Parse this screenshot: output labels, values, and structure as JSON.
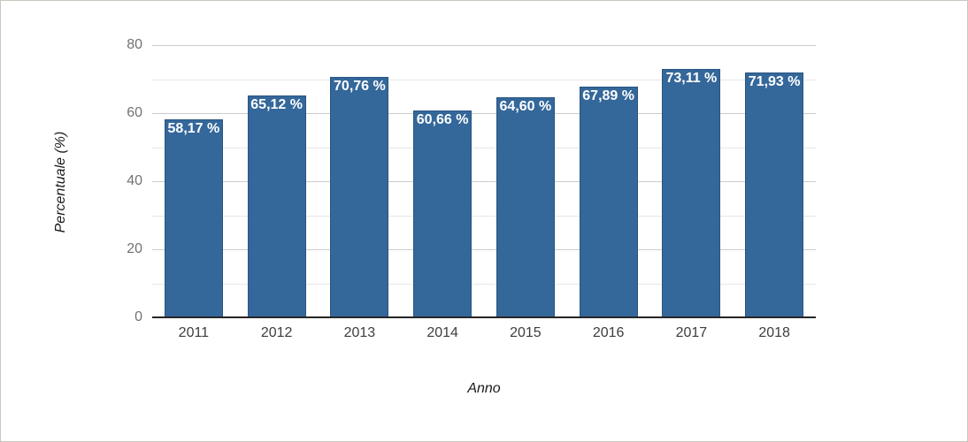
{
  "window": {
    "background": "#ffffff",
    "border_color": "#c7c7bf"
  },
  "chart_data": {
    "type": "bar",
    "title": "",
    "xlabel": "Anno",
    "ylabel": "Percentuale (%)",
    "categories": [
      "2011",
      "2012",
      "2013",
      "2014",
      "2015",
      "2016",
      "2017",
      "2018"
    ],
    "values": [
      58.17,
      65.12,
      70.76,
      60.66,
      64.6,
      67.89,
      73.11,
      71.93
    ],
    "value_labels": [
      "58,17 %",
      "65,12 %",
      "70,76 %",
      "60,66 %",
      "64,60 %",
      "67,89 %",
      "73,11 %",
      "71,93 %"
    ],
    "ylim": [
      0,
      80
    ],
    "yticks_major": [
      0,
      20,
      40,
      60,
      80
    ],
    "ytick_labels": [
      "0",
      "20",
      "40",
      "60",
      "80"
    ],
    "yticks_minor": [
      10,
      30,
      50,
      70
    ],
    "grid": "horizontal",
    "legend_position": "none",
    "colors": {
      "bar_fill": "#34679a",
      "bar_border": "#295582",
      "grid_major": "#cccccc",
      "grid_minor": "#e7e7e7",
      "axis_line": "#262626",
      "ytick_text": "#717171",
      "xtick_text": "#3d3d3d",
      "value_label_text": "#ffffff",
      "axis_title_text": "#1a1a1a"
    }
  }
}
